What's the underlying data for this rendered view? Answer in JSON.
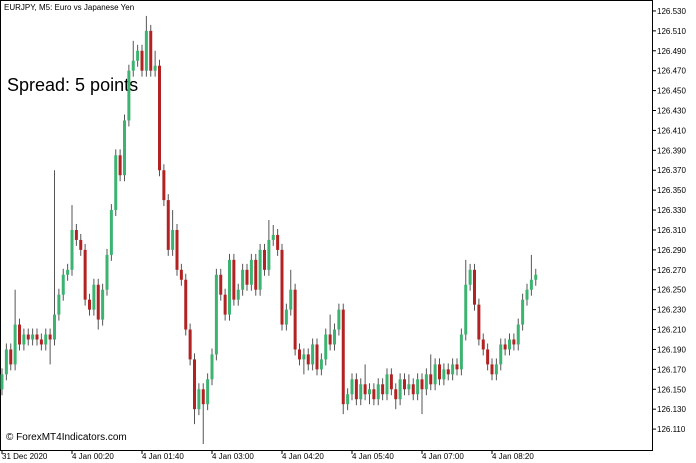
{
  "chart_data": {
    "type": "candlestick",
    "title": "EURJPY, M5:  Euro vs Japanese Yen",
    "annotation": "Spread: 5 points",
    "watermark": "© ForexMT4Indicators.com",
    "up_color": "#3cb371",
    "down_color": "#b22222",
    "ylim": [
      126.089,
      126.541
    ],
    "yticks": [
      {
        "value": 126.53,
        "label": "126.530"
      },
      {
        "value": 126.51,
        "label": "126.510"
      },
      {
        "value": 126.49,
        "label": "126.490"
      },
      {
        "value": 126.47,
        "label": "126.470"
      },
      {
        "value": 126.45,
        "label": "126.450"
      },
      {
        "value": 126.43,
        "label": "126.430"
      },
      {
        "value": 126.41,
        "label": "126.410"
      },
      {
        "value": 126.39,
        "label": "126.390"
      },
      {
        "value": 126.37,
        "label": "126.370"
      },
      {
        "value": 126.35,
        "label": "126.350"
      },
      {
        "value": 126.33,
        "label": "126.330"
      },
      {
        "value": 126.31,
        "label": "126.310"
      },
      {
        "value": 126.29,
        "label": "126.290"
      },
      {
        "value": 126.27,
        "label": "126.270"
      },
      {
        "value": 126.25,
        "label": "126.250"
      },
      {
        "value": 126.23,
        "label": "126.230"
      },
      {
        "value": 126.21,
        "label": "126.210"
      },
      {
        "value": 126.19,
        "label": "126.190"
      },
      {
        "value": 126.17,
        "label": "126.170"
      },
      {
        "value": 126.15,
        "label": "126.150"
      },
      {
        "value": 126.13,
        "label": "126.130"
      },
      {
        "value": 126.11,
        "label": "126.110"
      }
    ],
    "categories": [
      "31 Dec 2020",
      null,
      null,
      null,
      null,
      null,
      null,
      null,
      null,
      null,
      null,
      null,
      null,
      null,
      null,
      null,
      "4 Jan 00:20",
      null,
      null,
      null,
      null,
      null,
      null,
      null,
      null,
      null,
      null,
      null,
      null,
      null,
      null,
      null,
      "4 Jan 01:40",
      null,
      null,
      null,
      null,
      null,
      null,
      null,
      null,
      null,
      null,
      null,
      null,
      null,
      null,
      null,
      "4 Jan 03:00",
      null,
      null,
      null,
      null,
      null,
      null,
      null,
      null,
      null,
      null,
      null,
      null,
      null,
      null,
      null,
      "4 Jan 04:20",
      null,
      null,
      null,
      null,
      null,
      null,
      null,
      null,
      null,
      null,
      null,
      null,
      null,
      null,
      null,
      "4 Jan 05:40",
      null,
      null,
      null,
      null,
      null,
      null,
      null,
      null,
      null,
      null,
      null,
      null,
      null,
      null,
      null,
      "4 Jan 07:00",
      null,
      null,
      null,
      null,
      null,
      null,
      null,
      null,
      null,
      null,
      null,
      null,
      null,
      null,
      null,
      "4 Jan 08:20",
      null,
      null,
      null,
      null,
      null,
      null,
      null,
      null,
      null,
      null
    ],
    "open": [
      126.15,
      126.165,
      126.19,
      126.175,
      126.215,
      126.195,
      126.205,
      126.2,
      126.205,
      126.2,
      126.195,
      126.205,
      126.2,
      126.225,
      126.245,
      126.265,
      126.27,
      126.31,
      126.3,
      126.29,
      126.24,
      126.23,
      126.255,
      126.22,
      126.25,
      126.285,
      126.33,
      126.385,
      126.365,
      126.42,
      126.47,
      126.48,
      126.49,
      126.47,
      126.51,
      126.47,
      126.475,
      126.37,
      126.34,
      126.29,
      126.31,
      126.27,
      126.26,
      126.21,
      126.18,
      126.13,
      126.15,
      126.135,
      126.16,
      126.185,
      126.265,
      126.245,
      126.225,
      126.28,
      126.24,
      126.25,
      126.27,
      126.255,
      126.28,
      126.25,
      126.29,
      126.27,
      126.3,
      126.305,
      126.29,
      126.215,
      126.23,
      126.25,
      126.19,
      126.18,
      126.185,
      126.175,
      126.195,
      126.17,
      126.18,
      126.205,
      126.195,
      126.21,
      126.23,
      126.135,
      126.145,
      126.16,
      126.14,
      126.155,
      126.145,
      126.15,
      126.14,
      126.155,
      126.145,
      126.165,
      126.15,
      126.14,
      126.16,
      126.15,
      126.155,
      126.145,
      126.16,
      126.15,
      126.165,
      126.155,
      126.175,
      126.16,
      126.17,
      126.165,
      126.175,
      126.17,
      126.205,
      126.255,
      126.27,
      126.235,
      126.2,
      126.19,
      126.175,
      126.165,
      126.175,
      126.195,
      126.19,
      126.2,
      126.195,
      126.215,
      126.24,
      126.25,
      126.26
    ],
    "high": [
      126.171,
      126.196,
      126.196,
      126.25,
      126.221,
      126.211,
      126.211,
      126.211,
      126.211,
      126.206,
      126.211,
      126.211,
      126.37,
      126.251,
      126.271,
      126.276,
      126.335,
      126.316,
      126.306,
      126.296,
      126.246,
      126.261,
      126.261,
      126.256,
      126.291,
      126.336,
      126.391,
      126.391,
      126.426,
      126.476,
      126.5,
      126.496,
      126.496,
      126.525,
      126.516,
      126.49,
      126.481,
      126.376,
      126.346,
      126.33,
      126.316,
      126.276,
      126.266,
      126.216,
      126.186,
      126.156,
      126.156,
      126.166,
      126.191,
      126.271,
      126.271,
      126.251,
      126.286,
      126.286,
      126.256,
      126.276,
      126.276,
      126.286,
      126.286,
      126.296,
      126.296,
      126.32,
      126.315,
      126.311,
      126.296,
      126.236,
      126.27,
      126.256,
      126.196,
      126.191,
      126.191,
      126.201,
      126.201,
      126.186,
      126.211,
      126.225,
      126.216,
      126.236,
      126.236,
      126.151,
      126.166,
      126.166,
      126.161,
      126.175,
      126.156,
      126.156,
      126.161,
      126.161,
      126.171,
      126.171,
      126.156,
      126.166,
      126.166,
      126.165,
      126.161,
      126.166,
      126.166,
      126.171,
      126.185,
      126.181,
      126.181,
      126.176,
      126.176,
      126.181,
      126.181,
      126.211,
      126.28,
      126.276,
      126.276,
      126.241,
      126.206,
      126.196,
      126.181,
      126.181,
      126.201,
      126.201,
      126.206,
      126.206,
      126.221,
      126.246,
      126.256,
      126.285,
      126.271
    ],
    "low": [
      126.144,
      126.159,
      126.169,
      126.169,
      126.189,
      126.189,
      126.194,
      126.194,
      126.194,
      126.189,
      126.189,
      126.175,
      126.194,
      126.219,
      126.239,
      126.259,
      126.264,
      126.294,
      126.284,
      126.234,
      126.224,
      126.224,
      126.21,
      126.214,
      126.244,
      126.279,
      126.324,
      126.359,
      126.359,
      126.414,
      126.464,
      126.474,
      126.464,
      126.464,
      126.464,
      126.464,
      126.364,
      126.334,
      126.284,
      126.284,
      126.264,
      126.254,
      126.204,
      126.174,
      126.115,
      126.124,
      126.095,
      126.129,
      126.154,
      126.179,
      126.239,
      126.219,
      126.219,
      126.234,
      126.234,
      126.244,
      126.249,
      126.249,
      126.244,
      126.244,
      126.264,
      126.264,
      126.294,
      126.284,
      126.209,
      126.209,
      126.224,
      126.184,
      126.174,
      126.165,
      126.169,
      126.169,
      126.164,
      126.164,
      126.174,
      126.189,
      126.189,
      126.204,
      126.125,
      126.129,
      126.139,
      126.134,
      126.134,
      126.139,
      126.135,
      126.134,
      126.134,
      126.139,
      126.139,
      126.144,
      126.13,
      126.134,
      126.144,
      126.144,
      126.139,
      126.139,
      126.125,
      126.144,
      126.149,
      126.149,
      126.154,
      126.154,
      126.159,
      126.159,
      126.164,
      126.164,
      126.199,
      126.249,
      126.229,
      126.194,
      126.184,
      126.169,
      126.159,
      126.159,
      126.169,
      126.184,
      126.184,
      126.189,
      126.189,
      126.209,
      126.234,
      126.244,
      126.254
    ],
    "close": [
      126.165,
      126.19,
      126.175,
      126.215,
      126.195,
      126.205,
      126.2,
      126.205,
      126.2,
      126.195,
      126.205,
      126.2,
      126.225,
      126.245,
      126.265,
      126.27,
      126.31,
      126.3,
      126.29,
      126.24,
      126.23,
      126.255,
      126.22,
      126.25,
      126.285,
      126.33,
      126.385,
      126.365,
      126.42,
      126.47,
      126.48,
      126.49,
      126.47,
      126.51,
      126.47,
      126.475,
      126.37,
      126.34,
      126.29,
      126.31,
      126.27,
      126.26,
      126.21,
      126.18,
      126.13,
      126.15,
      126.135,
      126.16,
      126.185,
      126.265,
      126.245,
      126.225,
      126.28,
      126.24,
      126.25,
      126.27,
      126.255,
      126.28,
      126.25,
      126.29,
      126.27,
      126.3,
      126.305,
      126.29,
      126.215,
      126.23,
      126.25,
      126.19,
      126.18,
      126.185,
      126.175,
      126.195,
      126.17,
      126.18,
      126.205,
      126.195,
      126.21,
      126.23,
      126.135,
      126.145,
      126.16,
      126.14,
      126.155,
      126.145,
      126.15,
      126.14,
      126.155,
      126.145,
      126.165,
      126.15,
      126.14,
      126.16,
      126.15,
      126.155,
      126.145,
      126.16,
      126.15,
      126.165,
      126.155,
      126.175,
      126.16,
      126.17,
      126.165,
      126.175,
      126.17,
      126.205,
      126.255,
      126.27,
      126.235,
      126.2,
      126.19,
      126.175,
      126.165,
      126.175,
      126.195,
      126.19,
      126.2,
      126.195,
      126.215,
      126.24,
      126.25,
      126.26,
      126.265
    ]
  }
}
